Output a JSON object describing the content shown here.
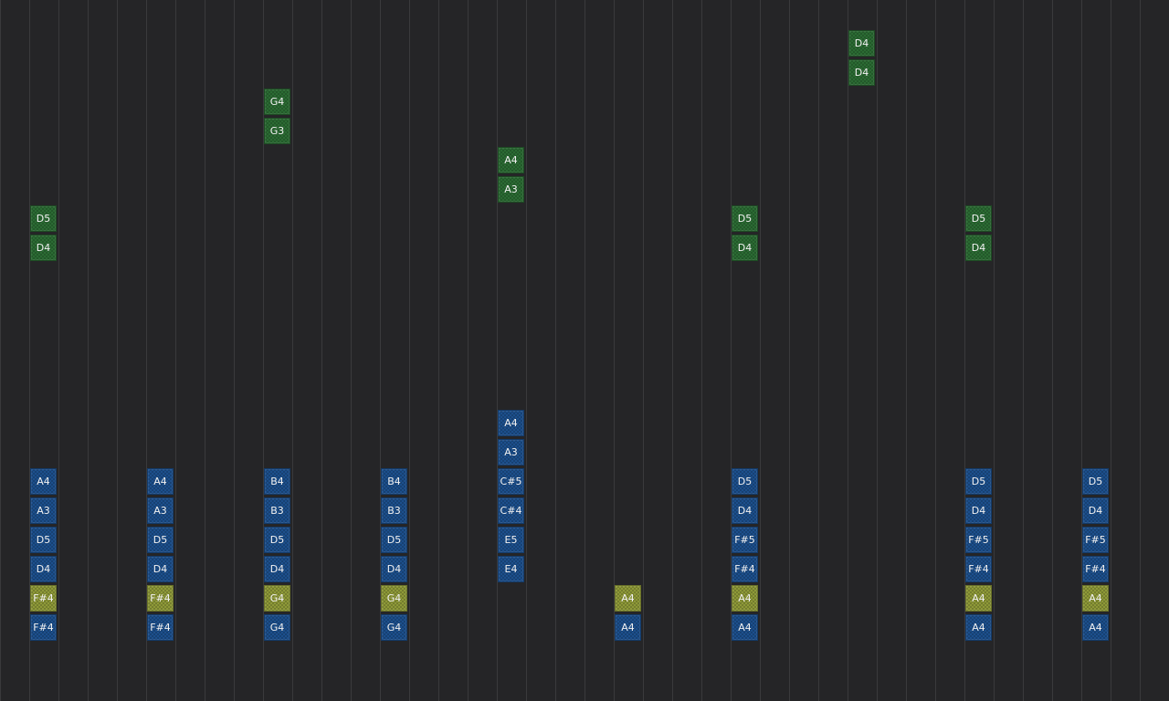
{
  "colors": {
    "background": "#252527",
    "grid_line": "#3a3a3c",
    "blue": {
      "fill": "#1c4f8c",
      "border": "#123a69"
    },
    "green": {
      "fill": "#2b6b33",
      "border": "#1c4a22"
    },
    "yellow": {
      "fill": "#8e9938",
      "border": "#6a7226"
    }
  },
  "notes": [
    {
      "step": 1,
      "lane": 7,
      "label": "D5",
      "color": "green"
    },
    {
      "step": 1,
      "lane": 8,
      "label": "D4",
      "color": "green"
    },
    {
      "step": 1,
      "lane": 16,
      "label": "A4",
      "color": "blue"
    },
    {
      "step": 1,
      "lane": 17,
      "label": "A3",
      "color": "blue"
    },
    {
      "step": 1,
      "lane": 18,
      "label": "D5",
      "color": "blue"
    },
    {
      "step": 1,
      "lane": 19,
      "label": "D4",
      "color": "blue"
    },
    {
      "step": 1,
      "lane": 20,
      "label": "F#4",
      "color": "yellow"
    },
    {
      "step": 1,
      "lane": 21,
      "label": "F#4",
      "color": "blue"
    },
    {
      "step": 5,
      "lane": 16,
      "label": "A4",
      "color": "blue"
    },
    {
      "step": 5,
      "lane": 17,
      "label": "A3",
      "color": "blue"
    },
    {
      "step": 5,
      "lane": 18,
      "label": "D5",
      "color": "blue"
    },
    {
      "step": 5,
      "lane": 19,
      "label": "D4",
      "color": "blue"
    },
    {
      "step": 5,
      "lane": 20,
      "label": "F#4",
      "color": "yellow"
    },
    {
      "step": 5,
      "lane": 21,
      "label": "F#4",
      "color": "blue"
    },
    {
      "step": 9,
      "lane": 3,
      "label": "G4",
      "color": "green"
    },
    {
      "step": 9,
      "lane": 4,
      "label": "G3",
      "color": "green"
    },
    {
      "step": 9,
      "lane": 16,
      "label": "B4",
      "color": "blue"
    },
    {
      "step": 9,
      "lane": 17,
      "label": "B3",
      "color": "blue"
    },
    {
      "step": 9,
      "lane": 18,
      "label": "D5",
      "color": "blue"
    },
    {
      "step": 9,
      "lane": 19,
      "label": "D4",
      "color": "blue"
    },
    {
      "step": 9,
      "lane": 20,
      "label": "G4",
      "color": "yellow"
    },
    {
      "step": 9,
      "lane": 21,
      "label": "G4",
      "color": "blue"
    },
    {
      "step": 13,
      "lane": 16,
      "label": "B4",
      "color": "blue"
    },
    {
      "step": 13,
      "lane": 17,
      "label": "B3",
      "color": "blue"
    },
    {
      "step": 13,
      "lane": 18,
      "label": "D5",
      "color": "blue"
    },
    {
      "step": 13,
      "lane": 19,
      "label": "D4",
      "color": "blue"
    },
    {
      "step": 13,
      "lane": 20,
      "label": "G4",
      "color": "yellow"
    },
    {
      "step": 13,
      "lane": 21,
      "label": "G4",
      "color": "blue"
    },
    {
      "step": 17,
      "lane": 5,
      "label": "A4",
      "color": "green"
    },
    {
      "step": 17,
      "lane": 6,
      "label": "A3",
      "color": "green"
    },
    {
      "step": 17,
      "lane": 14,
      "label": "A4",
      "color": "blue"
    },
    {
      "step": 17,
      "lane": 15,
      "label": "A3",
      "color": "blue"
    },
    {
      "step": 17,
      "lane": 16,
      "label": "C#5",
      "color": "blue"
    },
    {
      "step": 17,
      "lane": 17,
      "label": "C#4",
      "color": "blue"
    },
    {
      "step": 17,
      "lane": 18,
      "label": "E5",
      "color": "blue"
    },
    {
      "step": 17,
      "lane": 19,
      "label": "E4",
      "color": "blue"
    },
    {
      "step": 21,
      "lane": 20,
      "label": "A4",
      "color": "yellow"
    },
    {
      "step": 21,
      "lane": 21,
      "label": "A4",
      "color": "blue"
    },
    {
      "step": 25,
      "lane": 7,
      "label": "D5",
      "color": "green"
    },
    {
      "step": 25,
      "lane": 8,
      "label": "D4",
      "color": "green"
    },
    {
      "step": 25,
      "lane": 16,
      "label": "D5",
      "color": "blue"
    },
    {
      "step": 25,
      "lane": 17,
      "label": "D4",
      "color": "blue"
    },
    {
      "step": 25,
      "lane": 18,
      "label": "F#5",
      "color": "blue"
    },
    {
      "step": 25,
      "lane": 19,
      "label": "F#4",
      "color": "blue"
    },
    {
      "step": 25,
      "lane": 20,
      "label": "A4",
      "color": "yellow"
    },
    {
      "step": 25,
      "lane": 21,
      "label": "A4",
      "color": "blue"
    },
    {
      "step": 29,
      "lane": 1,
      "label": "D4",
      "color": "green"
    },
    {
      "step": 29,
      "lane": 2,
      "label": "D4",
      "color": "green"
    },
    {
      "step": 33,
      "lane": 7,
      "label": "D5",
      "color": "green"
    },
    {
      "step": 33,
      "lane": 8,
      "label": "D4",
      "color": "green"
    },
    {
      "step": 33,
      "lane": 16,
      "label": "D5",
      "color": "blue"
    },
    {
      "step": 33,
      "lane": 17,
      "label": "D4",
      "color": "blue"
    },
    {
      "step": 33,
      "lane": 18,
      "label": "F#5",
      "color": "blue"
    },
    {
      "step": 33,
      "lane": 19,
      "label": "F#4",
      "color": "blue"
    },
    {
      "step": 33,
      "lane": 20,
      "label": "A4",
      "color": "yellow"
    },
    {
      "step": 33,
      "lane": 21,
      "label": "A4",
      "color": "blue"
    },
    {
      "step": 37,
      "lane": 16,
      "label": "D5",
      "color": "blue"
    },
    {
      "step": 37,
      "lane": 17,
      "label": "D4",
      "color": "blue"
    },
    {
      "step": 37,
      "lane": 18,
      "label": "F#5",
      "color": "blue"
    },
    {
      "step": 37,
      "lane": 19,
      "label": "F#4",
      "color": "blue"
    },
    {
      "step": 37,
      "lane": 20,
      "label": "A4",
      "color": "yellow"
    },
    {
      "step": 37,
      "lane": 21,
      "label": "A4",
      "color": "blue"
    }
  ]
}
